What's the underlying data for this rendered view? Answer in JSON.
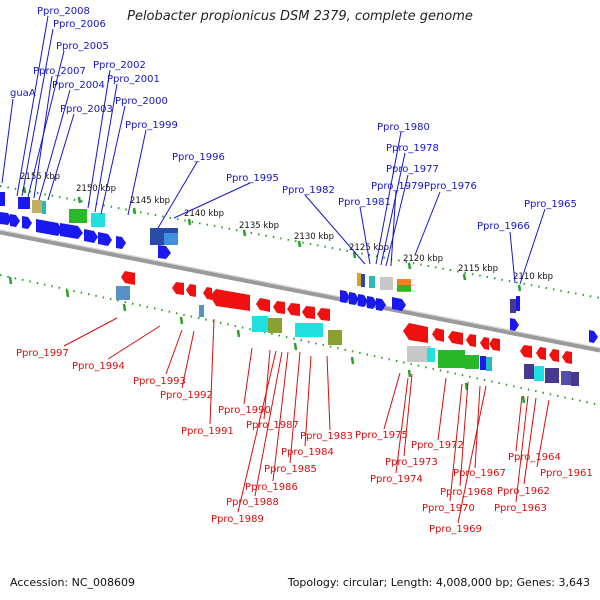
{
  "title": "Pelobacter propionicus DSM 2379, complete genome",
  "footer": {
    "accession": "Accession: NC_008609",
    "summary": "Topology: circular; Length: 4,008,000 bp; Genes: 3,643"
  },
  "kbp_labels": [
    "2155 kbp",
    "2150 kbp",
    "2145 kbp",
    "2140 kbp",
    "2135 kbp",
    "2130 kbp",
    "2125 kbp",
    "2120 kbp",
    "2115 kbp",
    "2110 kbp"
  ],
  "top_labels": [
    "Ppro_2008",
    "Ppro_2006",
    "Ppro_2005",
    "Ppro_2007",
    "Ppro_2004",
    "guaA",
    "Ppro_2003",
    "Ppro_2002",
    "Ppro_2001",
    "Ppro_2000",
    "Ppro_1999",
    "Ppro_1996",
    "Ppro_1995",
    "Ppro_1982",
    "Ppro_1981",
    "Ppro_1980",
    "Ppro_1978",
    "Ppro_1977",
    "Ppro_1979",
    "Ppro_1976",
    "Ppro_1966",
    "Ppro_1965"
  ],
  "bottom_labels": [
    "Ppro_1997",
    "Ppro_1994",
    "Ppro_1993",
    "Ppro_1992",
    "Ppro_1991",
    "Ppro_1990",
    "Ppro_1987",
    "Ppro_1983",
    "Ppro_1984",
    "Ppro_1985",
    "Ppro_1986",
    "Ppro_1988",
    "Ppro_1989",
    "Ppro_1975",
    "Ppro_1972",
    "Ppro_1973",
    "Ppro_1974",
    "Ppro_1967",
    "Ppro_1968",
    "Ppro_1970",
    "Ppro_1969",
    "Ppro_1964",
    "Ppro_1961",
    "Ppro_1962",
    "Ppro_1963"
  ],
  "colors": {
    "forward_label": "#1616c8",
    "reverse_label": "#d80e0e",
    "forward_gene": "#1a1af0",
    "reverse_gene": "#f01010",
    "backbone": "#8a8a8a",
    "tick": "#2aa02a"
  }
}
